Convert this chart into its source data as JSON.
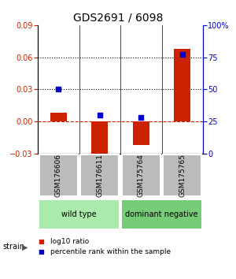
{
  "title": "GDS2691 / 6098",
  "samples": [
    "GSM176606",
    "GSM176611",
    "GSM175764",
    "GSM175765"
  ],
  "log10_ratio": [
    0.008,
    -0.034,
    -0.022,
    0.068
  ],
  "percentile_rank_pct": [
    50,
    30,
    28,
    77
  ],
  "bar_color": "#cc2200",
  "dot_color": "#0000cc",
  "ylim_left": [
    -0.03,
    0.09
  ],
  "ylim_right": [
    0,
    100
  ],
  "yticks_left": [
    -0.03,
    0,
    0.03,
    0.06,
    0.09
  ],
  "yticks_right": [
    0,
    25,
    50,
    75,
    100
  ],
  "ytick_labels_right": [
    "0",
    "25",
    "50",
    "75",
    "100%"
  ],
  "hlines": [
    0.03,
    0.06
  ],
  "groups": [
    {
      "label": "wild type",
      "indices": [
        0,
        1
      ],
      "color": "#aaeaaa"
    },
    {
      "label": "dominant negative",
      "indices": [
        2,
        3
      ],
      "color": "#77cc77"
    }
  ],
  "strain_label": "strain",
  "legend_items": [
    {
      "label": "log10 ratio",
      "color": "#cc2200"
    },
    {
      "label": "percentile rank within the sample",
      "color": "#0000cc"
    }
  ],
  "background_color": "#ffffff",
  "sample_box_color": "#bbbbbb",
  "title_fontsize": 10,
  "tick_fontsize": 7,
  "sample_fontsize": 6.5,
  "group_fontsize": 7,
  "legend_fontsize": 6.5
}
